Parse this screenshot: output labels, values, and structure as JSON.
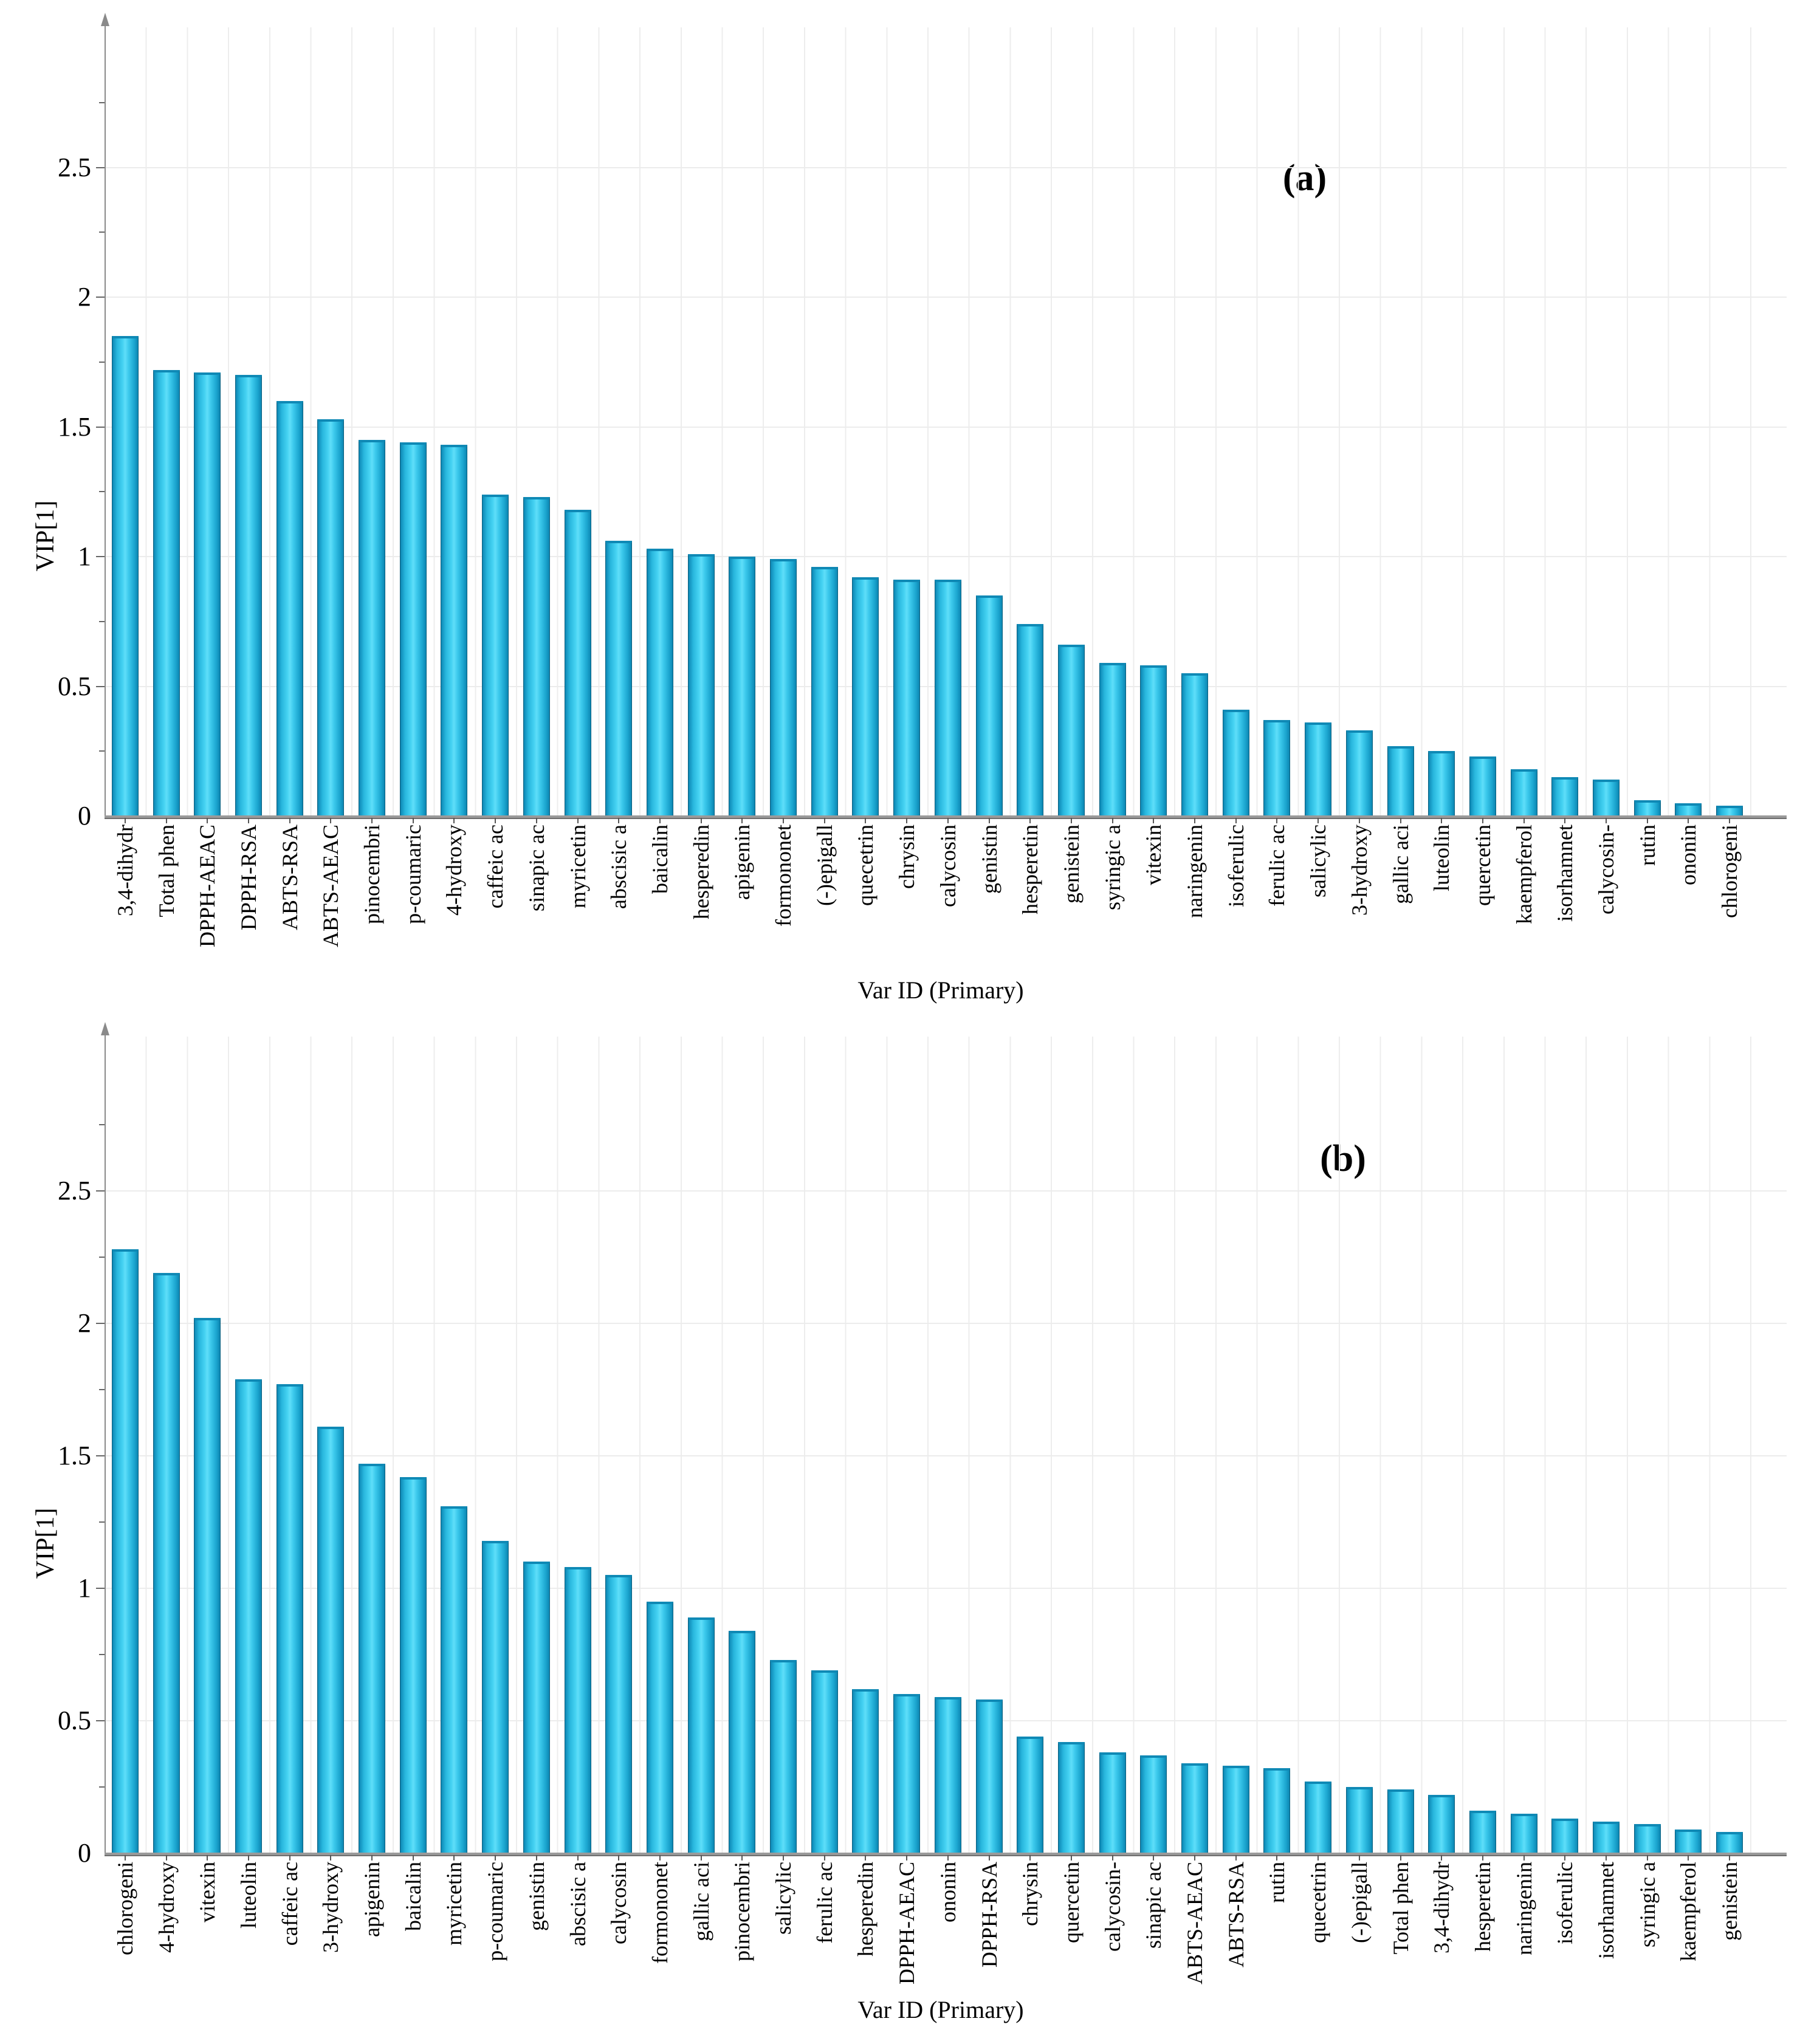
{
  "chart_data": [
    {
      "type": "bar",
      "title": "(a)",
      "xlabel": "Var ID (Primary)",
      "ylabel": "VIP[1]",
      "ylim": [
        0,
        2.9
      ],
      "yticks": [
        0,
        0.5,
        1,
        1.5,
        2,
        2.5
      ],
      "grid": true,
      "legend": "none",
      "bar_color": "#29b8e0",
      "categories": [
        "3,4-dihydr",
        "Total phen",
        "DPPH-AEAC",
        "DPPH-RSA",
        "ABTS-RSA",
        "ABTS-AEAC",
        "pinocembri",
        "p-coumaric",
        "4-hydroxy",
        "caffeic ac",
        "sinapic ac",
        "myricetin",
        "abscisic a",
        "baicalin",
        "hesperedin",
        "apigenin",
        "formononet",
        "(-)epigall",
        "quecetrin",
        "chrysin",
        "calycosin",
        "genistin",
        "hesperetin",
        "genistein",
        "syringic a",
        "vitexin",
        "naringenin",
        "isoferulic",
        "ferulic ac",
        "salicylic",
        "3-hydroxy",
        "gallic aci",
        "luteolin",
        "quercetin",
        "kaempferol",
        "isorhamnet",
        "calycosin-",
        "rutin",
        "ononin",
        "chlorogeni"
      ],
      "values": [
        1.85,
        1.72,
        1.71,
        1.7,
        1.6,
        1.53,
        1.45,
        1.44,
        1.43,
        1.24,
        1.23,
        1.18,
        1.06,
        1.03,
        1.01,
        1.0,
        0.99,
        0.96,
        0.92,
        0.91,
        0.91,
        0.85,
        0.74,
        0.66,
        0.59,
        0.58,
        0.55,
        0.41,
        0.37,
        0.36,
        0.33,
        0.27,
        0.25,
        0.23,
        0.18,
        0.15,
        0.14,
        0.06,
        0.05,
        0.04
      ]
    },
    {
      "type": "bar",
      "title": "(b)",
      "xlabel": "Var ID (Primary)",
      "ylabel": "VIP[1]",
      "ylim": [
        0,
        2.9
      ],
      "yticks": [
        0,
        0.5,
        1,
        1.5,
        2,
        2.5
      ],
      "grid": true,
      "legend": "none",
      "bar_color": "#29b8e0",
      "categories": [
        "chlorogeni",
        "4-hydroxy",
        "vitexin",
        "luteolin",
        "caffeic ac",
        "3-hydroxy",
        "apigenin",
        "baicalin",
        "myricetin",
        "p-coumaric",
        "genistin",
        "abscisic a",
        "calycosin",
        "formononet",
        "gallic aci",
        "pinocembri",
        "salicylic",
        "ferulic ac",
        "hesperedin",
        "DPPH-AEAC",
        "ononin",
        "DPPH-RSA",
        "chrysin",
        "quercetin",
        "calycosin-",
        "sinapic ac",
        "ABTS-AEAC",
        "ABTS-RSA",
        "rutin",
        "quecetrin",
        "(-)epigall",
        "Total phen",
        "3,4-dihydr",
        "hesperetin",
        "naringenin",
        "isoferulic",
        "isorhamnet",
        "syringic a",
        "kaempferol",
        "genistein"
      ],
      "values": [
        2.28,
        2.19,
        2.02,
        1.79,
        1.77,
        1.61,
        1.47,
        1.42,
        1.31,
        1.18,
        1.1,
        1.08,
        1.05,
        0.95,
        0.89,
        0.84,
        0.73,
        0.69,
        0.62,
        0.6,
        0.59,
        0.58,
        0.44,
        0.42,
        0.38,
        0.37,
        0.34,
        0.33,
        0.32,
        0.27,
        0.25,
        0.24,
        0.22,
        0.16,
        0.15,
        0.13,
        0.12,
        0.11,
        0.09,
        0.08
      ]
    }
  ]
}
